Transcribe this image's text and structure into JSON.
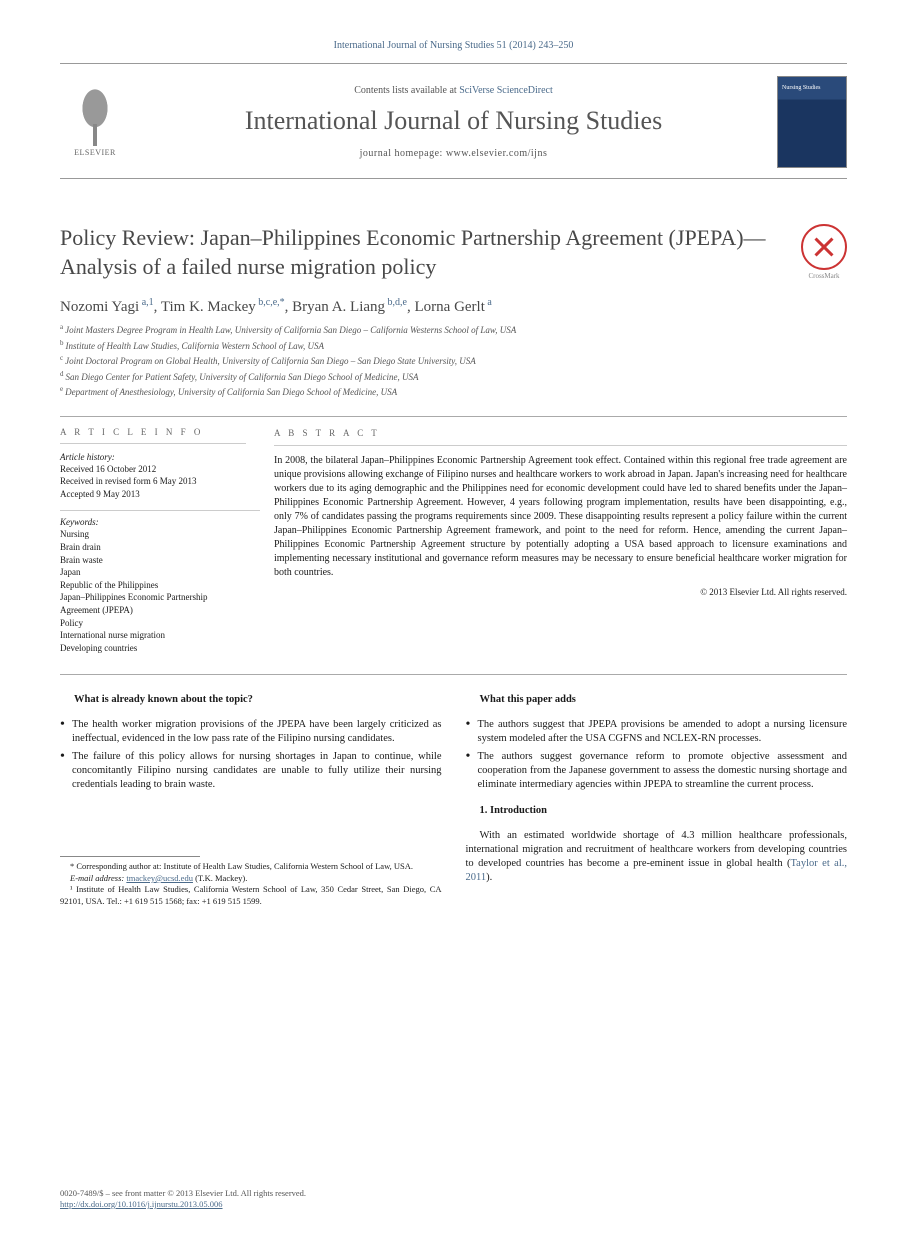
{
  "header": {
    "journal_ref": "International Journal of Nursing Studies 51 (2014) 243–250",
    "contents_prefix": "Contents lists available at ",
    "contents_link": "SciVerse ScienceDirect",
    "journal_title": "International Journal of Nursing Studies",
    "homepage_label": "journal homepage: www.elsevier.com/ijns",
    "publisher": "ELSEVIER",
    "cover_text": "Nursing Studies",
    "crossmark_label": "CrossMark"
  },
  "article": {
    "title": "Policy Review: Japan–Philippines Economic Partnership Agreement (JPEPA)—Analysis of a failed nurse migration policy",
    "authors_html": [
      {
        "name": "Nozomi Yagi",
        "supers": "a,1"
      },
      {
        "name": "Tim K. Mackey",
        "supers": "b,c,e,*"
      },
      {
        "name": "Bryan A. Liang",
        "supers": "b,d,e"
      },
      {
        "name": "Lorna Gerlt",
        "supers": "a"
      }
    ],
    "affiliations": [
      {
        "label": "a",
        "text": "Joint Masters Degree Program in Health Law, University of California San Diego – California Westerns School of Law, USA"
      },
      {
        "label": "b",
        "text": "Institute of Health Law Studies, California Western School of Law, USA"
      },
      {
        "label": "c",
        "text": "Joint Doctoral Program on Global Health, University of California San Diego – San Diego State University, USA"
      },
      {
        "label": "d",
        "text": "San Diego Center for Patient Safety, University of California San Diego School of Medicine, USA"
      },
      {
        "label": "e",
        "text": "Department of Anesthesiology, University of California San Diego School of Medicine, USA"
      }
    ]
  },
  "info": {
    "heading": "A R T I C L E   I N F O",
    "history_label": "Article history:",
    "history": [
      "Received 16 October 2012",
      "Received in revised form 6 May 2013",
      "Accepted 9 May 2013"
    ],
    "keywords_label": "Keywords:",
    "keywords": [
      "Nursing",
      "Brain drain",
      "Brain waste",
      "Japan",
      "Republic of the Philippines",
      "Japan–Philippines Economic Partnership Agreement (JPEPA)",
      "Policy",
      "International nurse migration",
      "Developing countries"
    ]
  },
  "abstract": {
    "heading": "A B S T R A C T",
    "text": "In 2008, the bilateral Japan–Philippines Economic Partnership Agreement took effect. Contained within this regional free trade agreement are unique provisions allowing exchange of Filipino nurses and healthcare workers to work abroad in Japan. Japan's increasing need for healthcare workers due to its aging demographic and the Philippines need for economic development could have led to shared benefits under the Japan–Philippines Economic Partnership Agreement. However, 4 years following program implementation, results have been disappointing, e.g., only 7% of candidates passing the programs requirements since 2009. These disappointing results represent a policy failure within the current Japan–Philippines Economic Partnership Agreement framework, and point to the need for reform. Hence, amending the current Japan–Philippines Economic Partnership Agreement structure by potentially adopting a USA based approach to licensure examinations and implementing necessary institutional and governance reform measures may be necessary to ensure beneficial healthcare worker migration for both countries.",
    "copyright": "© 2013 Elsevier Ltd. All rights reserved."
  },
  "body": {
    "left_heading": "What is already known about the topic?",
    "left_bullets": [
      "The health worker migration provisions of the JPEPA have been largely criticized as ineffectual, evidenced in the low pass rate of the Filipino nursing candidates.",
      "The failure of this policy allows for nursing shortages in Japan to continue, while concomitantly Filipino nursing candidates are unable to fully utilize their nursing credentials leading to brain waste."
    ],
    "right_heading": "What this paper adds",
    "right_bullets": [
      "The authors suggest that JPEPA provisions be amended to adopt a nursing licensure system modeled after the USA CGFNS and NCLEX-RN processes.",
      "The authors suggest governance reform to promote objective assessment and cooperation from the Japanese government to assess the domestic nursing shortage and eliminate intermediary agencies within JPEPA to streamline the current process."
    ],
    "section_heading": "1.  Introduction",
    "intro_para_prefix": "With an estimated worldwide shortage of 4.3 million healthcare professionals, international migration and recruitment of healthcare workers from developing countries to developed countries has become a pre-eminent issue in global health (",
    "intro_cite": "Taylor et al., 2011",
    "intro_para_suffix": ")."
  },
  "footnotes": {
    "corr": "* Corresponding author at: Institute of Health Law Studies, California Western School of Law, USA.",
    "email_label": "E-mail address: ",
    "email": "tmackey@ucsd.edu",
    "email_suffix": " (T.K. Mackey).",
    "fn1": "¹ Institute of Health Law Studies, California Western School of Law, 350 Cedar Street, San Diego, CA 92101, USA. Tel.: +1 619 515 1568; fax: +1 619 515 1599."
  },
  "bottom": {
    "issn_line": "0020-7489/$ – see front matter © 2013 Elsevier Ltd. All rights reserved.",
    "doi": "http://dx.doi.org/10.1016/j.ijnurstu.2013.05.006"
  },
  "colors": {
    "link": "#4a6a8a",
    "text": "#1a1a1a",
    "muted": "#555555",
    "rule": "#999999",
    "cover_top": "#2a4a7a",
    "cover_bot": "#1a3560",
    "crossmark": "#c33"
  },
  "typography": {
    "body_pt": 10.5,
    "title_pt": 22,
    "journal_title_pt": 26,
    "small_pt": 9,
    "footnote_pt": 8.5
  }
}
